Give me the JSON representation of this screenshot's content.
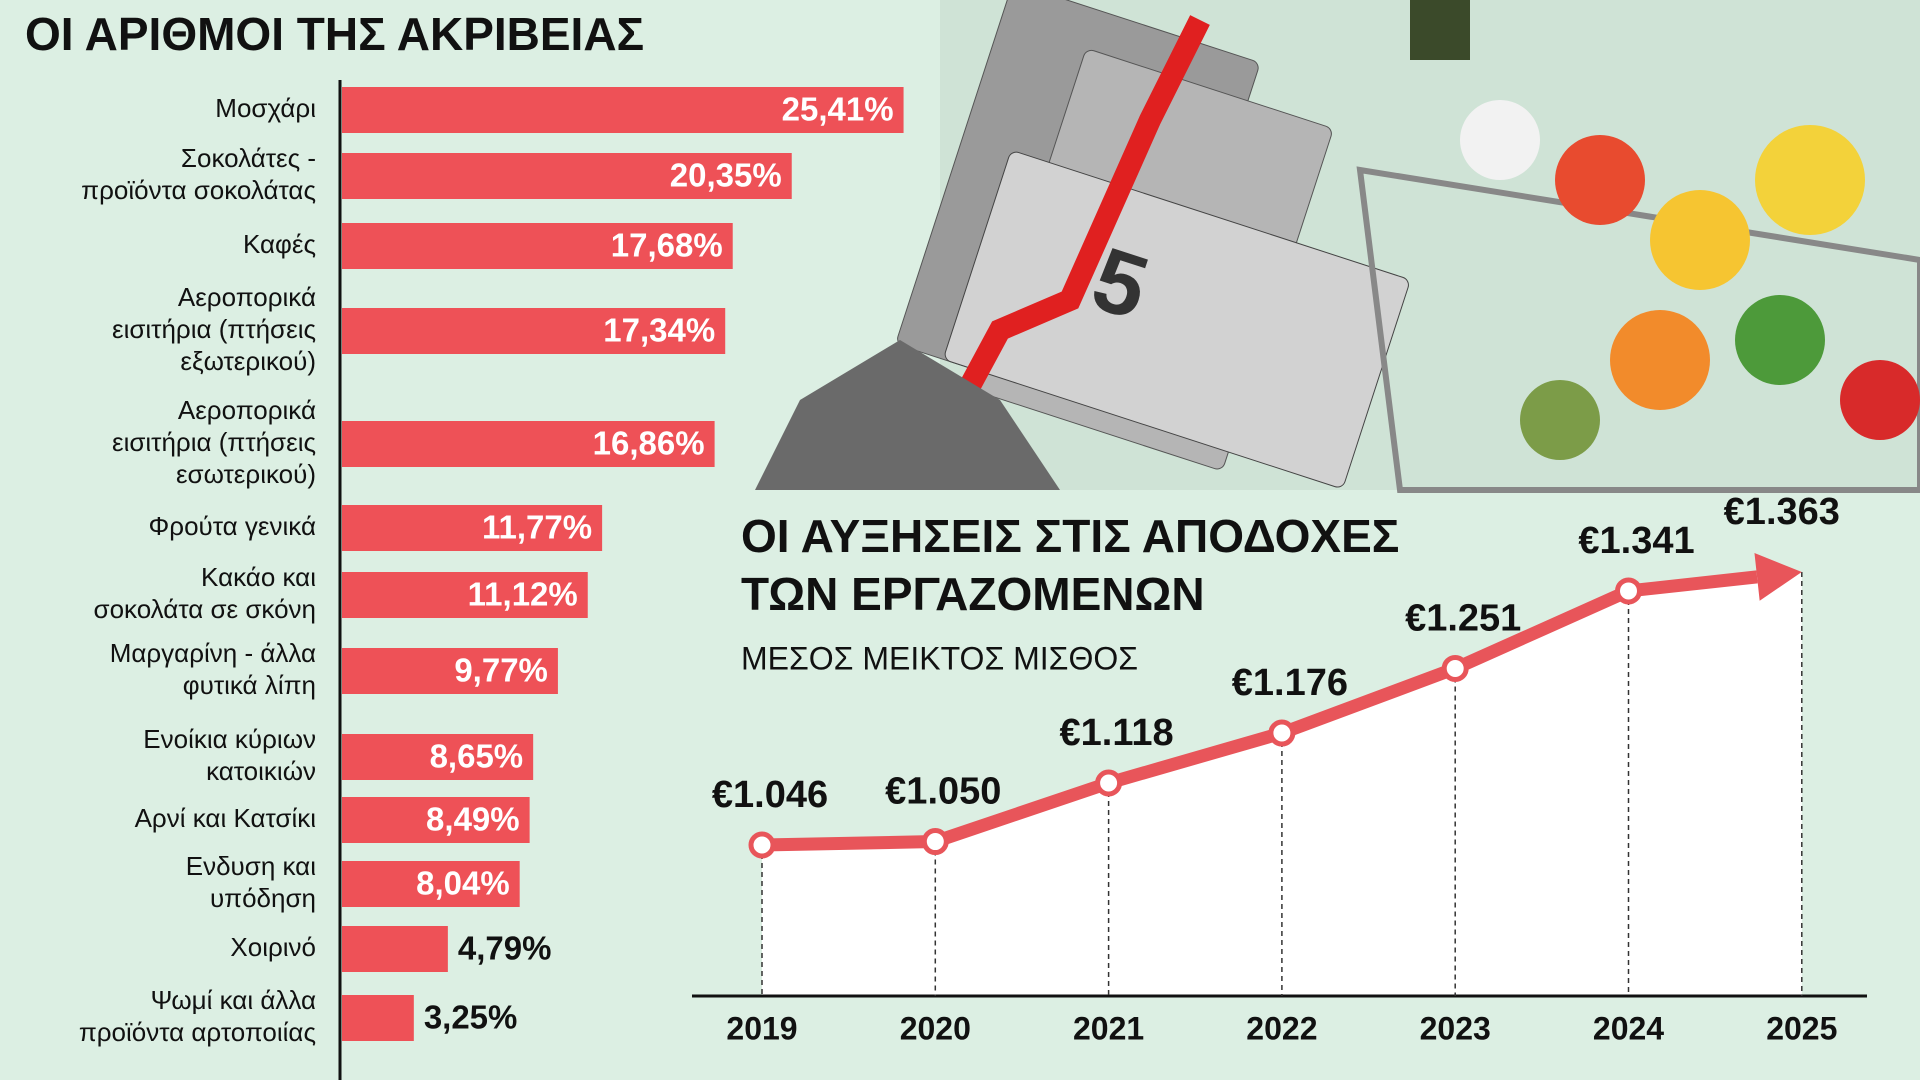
{
  "chart_data": [
    {
      "type": "barh",
      "title": "ΟΙ ΑΡΙΘΜΟΙ ΤΗΣ ΑΚΡΙΒΕΙΑΣ",
      "categories": [
        "Μοσχάρι",
        "Σοκολάτες -\nπροϊόντα σοκολάτας",
        "Καφές",
        "Αεροπορικά\nεισιτήρια (πτήσεις\nεξωτερικού)",
        "Αεροπορικά\nεισιτήρια (πτήσεις\nεσωτερικού)",
        "Φρούτα γενικά",
        "Κακάο και\nσοκολάτα σε σκόνη",
        "Μαργαρίνη - άλλα\nφυτικά λίπη",
        "Ενοίκια κύριων\nκατοικιών",
        "Αρνί και Κατσίκι",
        "Ενδυση και\nυπόδηση",
        "Χοιρινό",
        "Ψωμί και άλλα\nπροϊόντα αρτοποιίας"
      ],
      "values": [
        25.41,
        20.35,
        17.68,
        17.34,
        16.86,
        11.77,
        11.12,
        9.77,
        8.65,
        8.49,
        8.04,
        4.79,
        3.25
      ],
      "value_labels": [
        "25,41%",
        "20,35%",
        "17,68%",
        "17,34%",
        "16,86%",
        "11,77%",
        "11,12%",
        "9,77%",
        "8,65%",
        "8,49%",
        "8,04%",
        "4,79%",
        "3,25%"
      ],
      "color": "#ee5157"
    },
    {
      "type": "line",
      "title": "ΟΙ ΑΥΞΗΣΕΙΣ ΣΤΙΣ ΑΠΟΔΟΧΕΣ\nΤΩΝ ΕΡΓΑΖΟΜΕΝΩΝ",
      "subtitle": "ΜΕΣΟΣ ΜΕΙΚΤΟΣ ΜΙΣΘΟΣ",
      "categories": [
        "2019",
        "2020",
        "2021",
        "2022",
        "2023",
        "2024",
        "2025"
      ],
      "values": [
        1046,
        1050,
        1118,
        1176,
        1251,
        1341,
        1363
      ],
      "value_labels": [
        "€1.046",
        "€1.050",
        "€1.118",
        "€1.176",
        "€1.251",
        "€1.341",
        "€1.363"
      ],
      "color": "#e8555a"
    }
  ]
}
